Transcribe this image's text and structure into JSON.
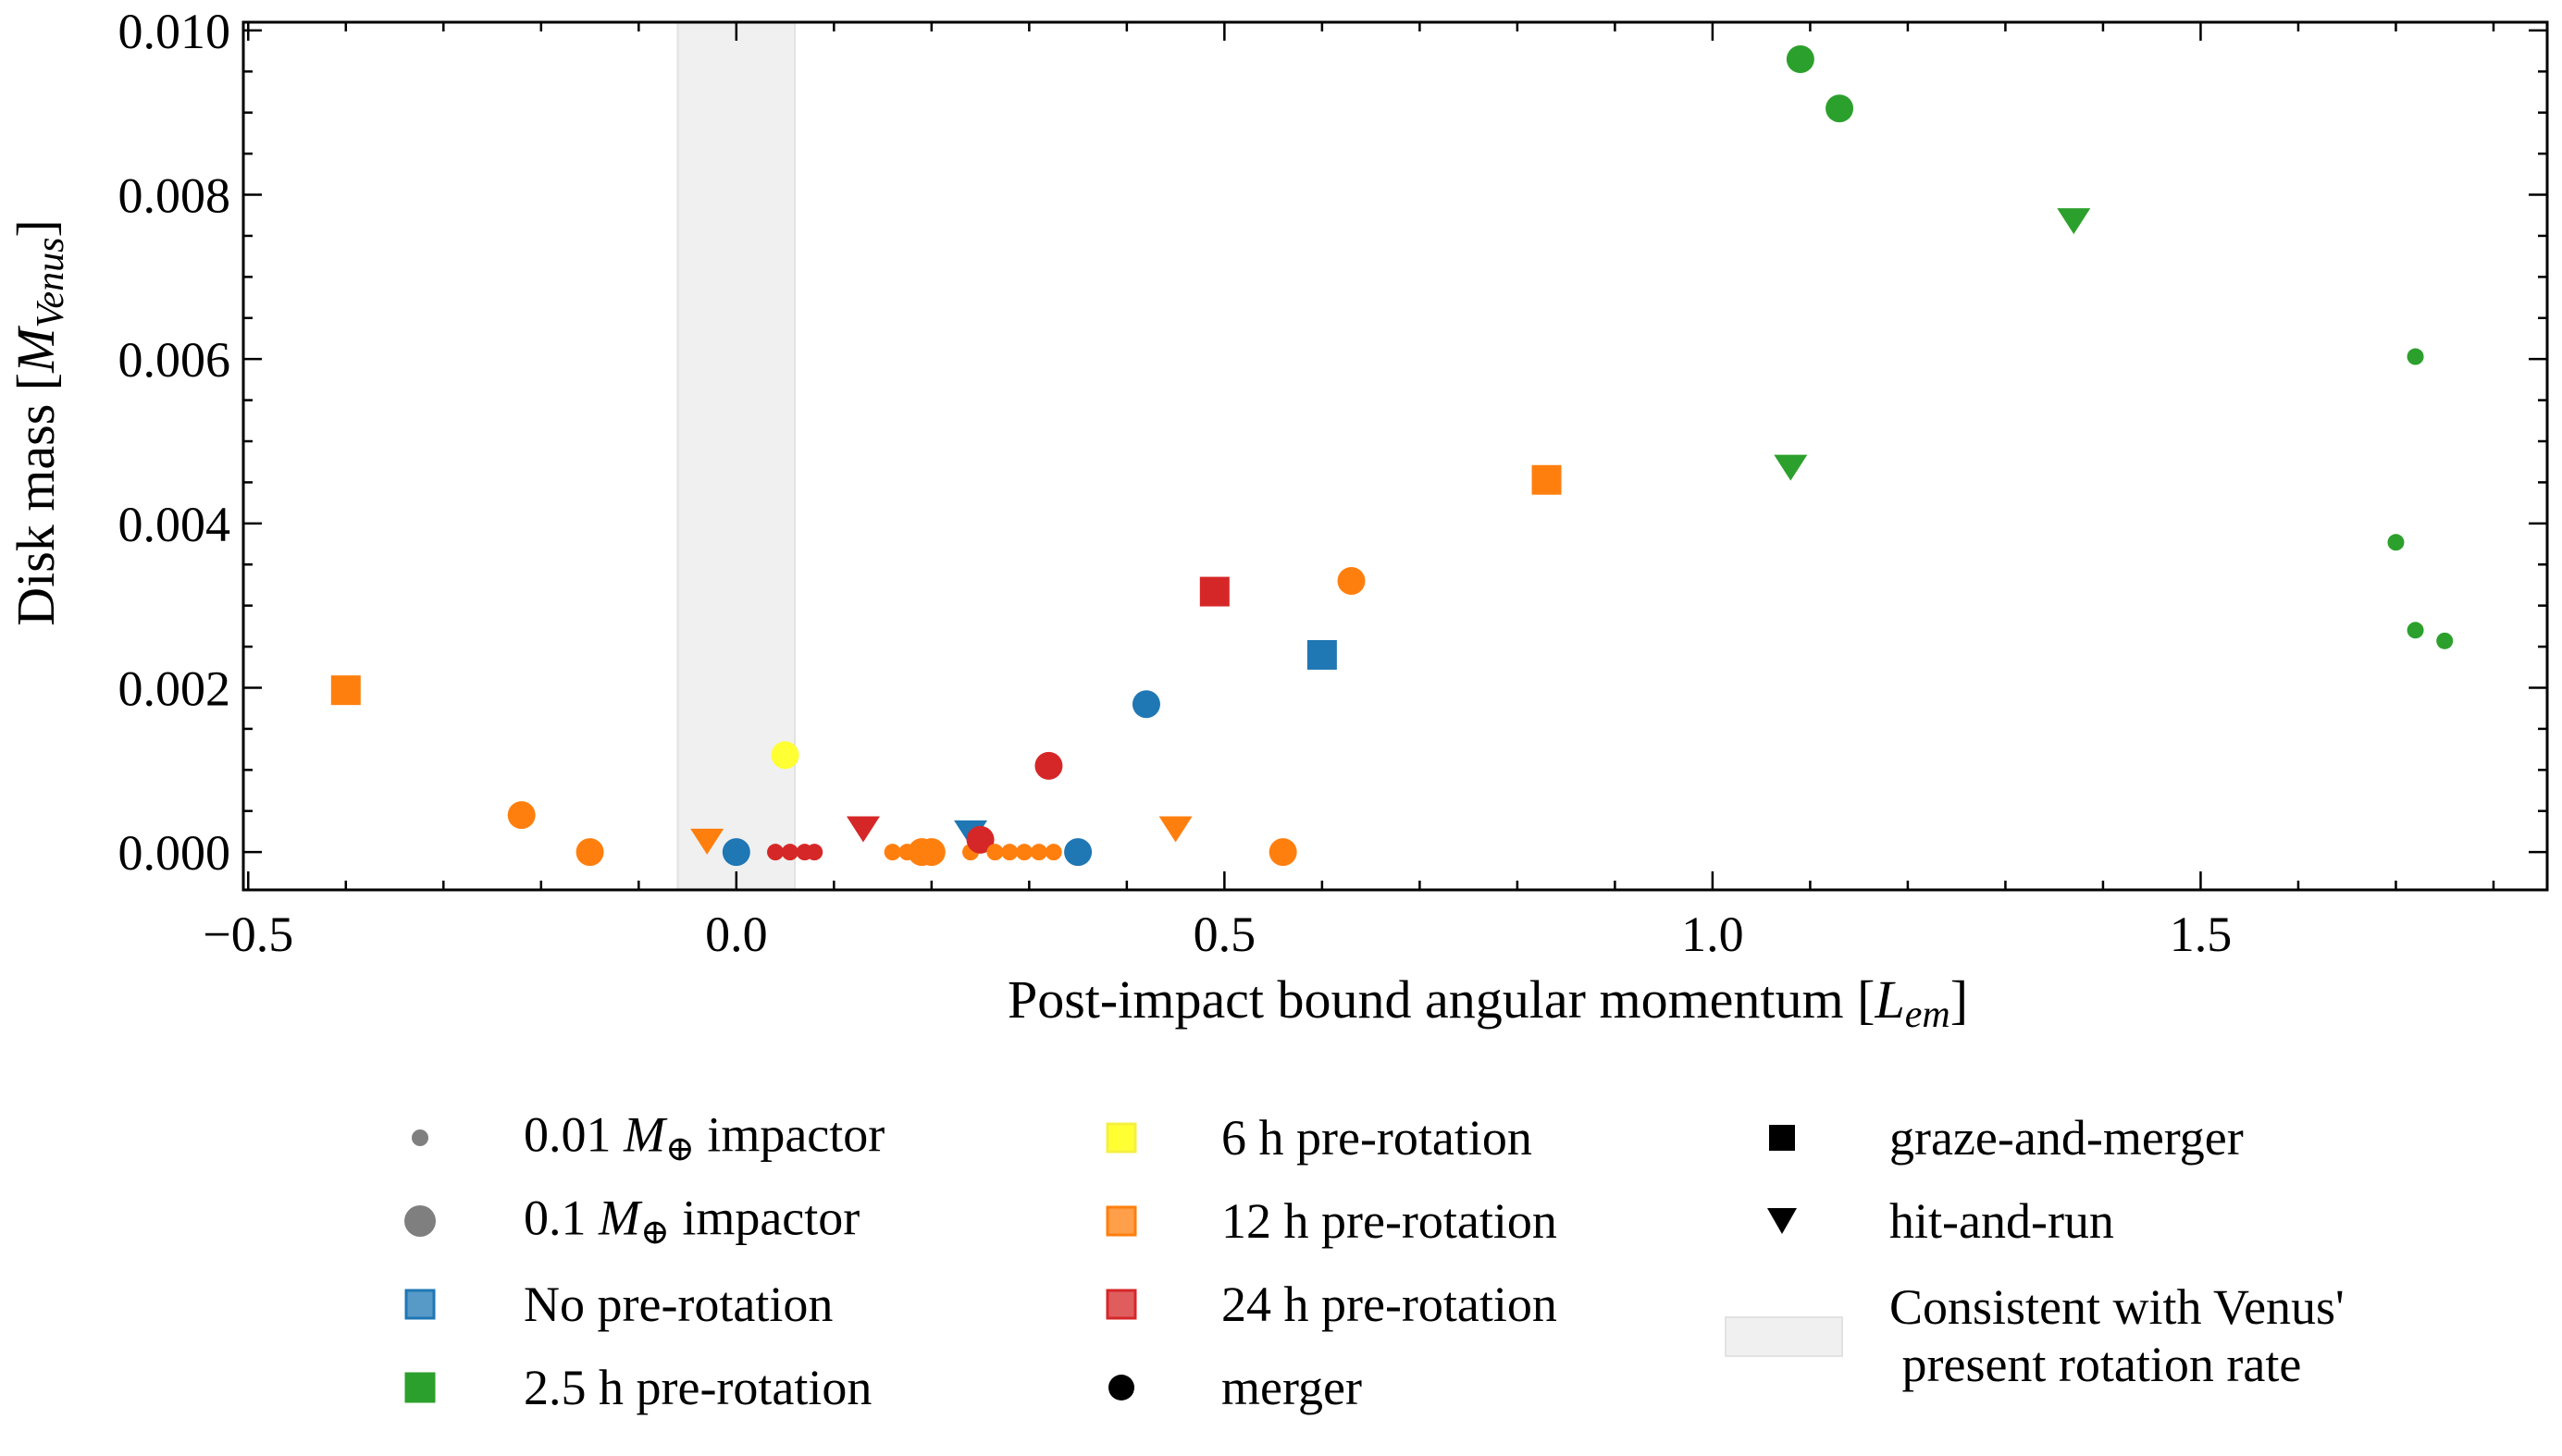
{
  "chart_data": {
    "type": "scatter",
    "xlabel": "Post-impact bound angular momentum [",
    "xlabel_unit_main": "L",
    "xlabel_unit_sub": "em",
    "xlabel_close": "]",
    "ylabel": "Disk mass [",
    "ylabel_unit_main": "M",
    "ylabel_unit_sub": "Venus",
    "ylabel_close": "]",
    "xlim": [
      -0.505,
      1.855
    ],
    "ylim": [
      -0.00046,
      0.0101
    ],
    "x_ticks": [
      -0.5,
      0.0,
      0.5,
      1.0,
      1.5
    ],
    "x_tick_labels": [
      "−0.5",
      "0.0",
      "0.5",
      "1.0",
      "1.5"
    ],
    "y_ticks": [
      0.0,
      0.002,
      0.004,
      0.006,
      0.008,
      0.01
    ],
    "y_tick_labels": [
      "0.000",
      "0.002",
      "0.004",
      "0.006",
      "0.008",
      "0.010"
    ],
    "grid": false,
    "shaded_band": {
      "x_range": [
        -0.06,
        0.06
      ],
      "color": "#f0f0f0",
      "label": "Consistent with Venus' present rotation rate"
    },
    "colors": {
      "none": "#1f77b4",
      "2.5h": "#2ca02c",
      "6h": "#ffff33",
      "12h": "#ff7f0e",
      "24h": "#d62728"
    },
    "points": [
      {
        "x": -0.4,
        "y": 0.00197,
        "rot": "12h",
        "outcome": "graze-and-merger",
        "impactor": "large"
      },
      {
        "x": -0.22,
        "y": 0.00045,
        "rot": "12h",
        "outcome": "merger",
        "impactor": "large"
      },
      {
        "x": -0.15,
        "y": 0.0,
        "rot": "12h",
        "outcome": "merger",
        "impactor": "large"
      },
      {
        "x": -0.03,
        "y": 0.00015,
        "rot": "12h",
        "outcome": "hit-and-run",
        "impactor": "large"
      },
      {
        "x": 0.0,
        "y": 0.0,
        "rot": "none",
        "outcome": "merger",
        "impactor": "large"
      },
      {
        "x": 0.05,
        "y": 0.00118,
        "rot": "6h",
        "outcome": "merger",
        "impactor": "large"
      },
      {
        "x": 0.04,
        "y": 0.0,
        "rot": "24h",
        "outcome": "merger",
        "impactor": "small"
      },
      {
        "x": 0.055,
        "y": 0.0,
        "rot": "24h",
        "outcome": "merger",
        "impactor": "small"
      },
      {
        "x": 0.07,
        "y": 0.0,
        "rot": "24h",
        "outcome": "merger",
        "impactor": "small"
      },
      {
        "x": 0.08,
        "y": 0.0,
        "rot": "24h",
        "outcome": "merger",
        "impactor": "small"
      },
      {
        "x": 0.13,
        "y": 0.0003,
        "rot": "24h",
        "outcome": "hit-and-run",
        "impactor": "large"
      },
      {
        "x": 0.16,
        "y": 0.0,
        "rot": "12h",
        "outcome": "merger",
        "impactor": "small"
      },
      {
        "x": 0.175,
        "y": 0.0,
        "rot": "12h",
        "outcome": "merger",
        "impactor": "small"
      },
      {
        "x": 0.19,
        "y": 0.0,
        "rot": "12h",
        "outcome": "merger",
        "impactor": "large"
      },
      {
        "x": 0.2,
        "y": 0.0,
        "rot": "12h",
        "outcome": "merger",
        "impactor": "large"
      },
      {
        "x": 0.24,
        "y": 0.00025,
        "rot": "none",
        "outcome": "hit-and-run",
        "impactor": "large"
      },
      {
        "x": 0.24,
        "y": 0.0,
        "rot": "12h",
        "outcome": "merger",
        "impactor": "small"
      },
      {
        "x": 0.25,
        "y": 0.00015,
        "rot": "24h",
        "outcome": "merger",
        "impactor": "large"
      },
      {
        "x": 0.265,
        "y": 0.0,
        "rot": "12h",
        "outcome": "merger",
        "impactor": "small"
      },
      {
        "x": 0.28,
        "y": 0.0,
        "rot": "12h",
        "outcome": "merger",
        "impactor": "small"
      },
      {
        "x": 0.295,
        "y": 0.0,
        "rot": "12h",
        "outcome": "merger",
        "impactor": "small"
      },
      {
        "x": 0.31,
        "y": 0.0,
        "rot": "12h",
        "outcome": "merger",
        "impactor": "small"
      },
      {
        "x": 0.325,
        "y": 0.0,
        "rot": "12h",
        "outcome": "merger",
        "impactor": "small"
      },
      {
        "x": 0.32,
        "y": 0.00105,
        "rot": "24h",
        "outcome": "merger",
        "impactor": "large"
      },
      {
        "x": 0.35,
        "y": 0.0,
        "rot": "none",
        "outcome": "merger",
        "impactor": "large"
      },
      {
        "x": 0.42,
        "y": 0.0018,
        "rot": "none",
        "outcome": "merger",
        "impactor": "large"
      },
      {
        "x": 0.45,
        "y": 0.0003,
        "rot": "12h",
        "outcome": "hit-and-run",
        "impactor": "large"
      },
      {
        "x": 0.49,
        "y": 0.00317,
        "rot": "24h",
        "outcome": "graze-and-merger",
        "impactor": "large"
      },
      {
        "x": 0.56,
        "y": 0.0,
        "rot": "12h",
        "outcome": "merger",
        "impactor": "large"
      },
      {
        "x": 0.6,
        "y": 0.0024,
        "rot": "none",
        "outcome": "graze-and-merger",
        "impactor": "large"
      },
      {
        "x": 0.63,
        "y": 0.0033,
        "rot": "12h",
        "outcome": "merger",
        "impactor": "large"
      },
      {
        "x": 0.83,
        "y": 0.00453,
        "rot": "12h",
        "outcome": "graze-and-merger",
        "impactor": "large"
      },
      {
        "x": 1.08,
        "y": 0.0047,
        "rot": "2.5h",
        "outcome": "hit-and-run",
        "impactor": "large"
      },
      {
        "x": 1.09,
        "y": 0.00965,
        "rot": "2.5h",
        "outcome": "merger",
        "impactor": "large"
      },
      {
        "x": 1.13,
        "y": 0.00905,
        "rot": "2.5h",
        "outcome": "merger",
        "impactor": "large"
      },
      {
        "x": 1.37,
        "y": 0.0077,
        "rot": "2.5h",
        "outcome": "hit-and-run",
        "impactor": "large"
      },
      {
        "x": 1.7,
        "y": 0.00377,
        "rot": "2.5h",
        "outcome": "merger",
        "impactor": "small"
      },
      {
        "x": 1.72,
        "y": 0.00603,
        "rot": "2.5h",
        "outcome": "merger",
        "impactor": "small"
      },
      {
        "x": 1.72,
        "y": 0.0027,
        "rot": "2.5h",
        "outcome": "merger",
        "impactor": "small"
      },
      {
        "x": 1.75,
        "y": 0.00257,
        "rot": "2.5h",
        "outcome": "merger",
        "impactor": "small"
      }
    ]
  },
  "legend": {
    "col1": [
      {
        "key": "small-impactor",
        "pre": "0.01 ",
        "math": "M",
        "sub": "⊕",
        "post": " impactor"
      },
      {
        "key": "large-impactor",
        "pre": "0.1 ",
        "math": "M",
        "sub": "⊕",
        "post": " impactor"
      },
      {
        "key": "no-rotation",
        "text": "No pre-rotation"
      },
      {
        "key": "rot-2-5h",
        "text": "2.5 h pre-rotation"
      }
    ],
    "col2": [
      {
        "key": "rot-6h",
        "text": "6 h pre-rotation"
      },
      {
        "key": "rot-12h",
        "text": "12 h pre-rotation"
      },
      {
        "key": "rot-24h",
        "text": "24 h pre-rotation"
      },
      {
        "key": "merger",
        "text": "merger"
      }
    ],
    "col3": [
      {
        "key": "graze-and-merger",
        "text": "graze-and-merger"
      },
      {
        "key": "hit-and-run",
        "text": "hit-and-run"
      },
      {
        "key": "consistent-venus",
        "line1": "Consistent with Venus'",
        "line2": " present rotation rate"
      }
    ]
  }
}
